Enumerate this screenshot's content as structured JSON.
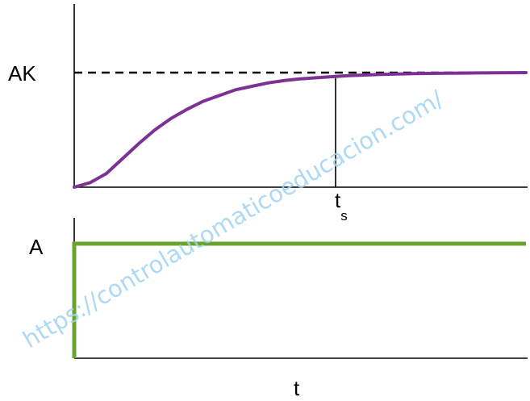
{
  "chart_data": [
    {
      "type": "line",
      "title": "",
      "xlabel": "",
      "ylabel": "",
      "curve": "step response of first order system with delay (S-shaped rise to final value)",
      "series": [
        {
          "name": "",
          "color": "#7b3294",
          "x": [
            0,
            0.5,
            1,
            1.5,
            2,
            2.5,
            3,
            3.5,
            4,
            4.5,
            5,
            5.5,
            6,
            6.5,
            7,
            7.5,
            8,
            8.5,
            9,
            9.5,
            10,
            10.5,
            11,
            11.5,
            12,
            12.5,
            13,
            13.5,
            14
          ],
          "y": [
            0,
            0.04,
            0.12,
            0.25,
            0.38,
            0.5,
            0.6,
            0.68,
            0.75,
            0.8,
            0.85,
            0.88,
            0.91,
            0.93,
            0.945,
            0.955,
            0.965,
            0.973,
            0.979,
            0.984,
            0.988,
            0.991,
            0.993,
            0.995,
            0.996,
            0.997,
            0.998,
            0.999,
            1.0
          ]
        }
      ],
      "reference_lines": [
        {
          "label": "AK",
          "y": 1.0,
          "style": "dashed"
        },
        {
          "label": "t",
          "label_sub": "s",
          "x": 8.1,
          "style": "solid-vertical"
        }
      ],
      "xlim": [
        0,
        14
      ],
      "ylim": [
        0,
        1.0
      ],
      "tick_labels": {
        "y_top": "AK",
        "x_settling_main": "t",
        "x_settling_sub": "s"
      }
    },
    {
      "type": "line",
      "title": "",
      "xlabel": "t",
      "ylabel": "",
      "series": [
        {
          "name": "",
          "color": "#6aa42d",
          "x": [
            0,
            0,
            14
          ],
          "y": [
            0,
            1,
            1
          ]
        }
      ],
      "xlim": [
        0,
        14
      ],
      "ylim": [
        0,
        1.0
      ],
      "tick_labels": {
        "y_top": "A"
      }
    }
  ],
  "watermark": "https://controlautomaticoeducacion.com/"
}
